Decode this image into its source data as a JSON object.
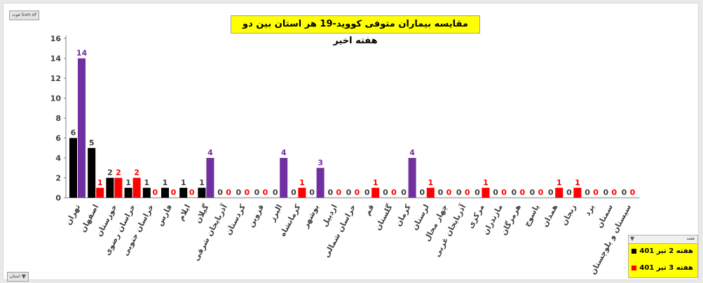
{
  "pivot": {
    "value_button": "Sum of فوت",
    "axis_button": "استان",
    "legend_field": "هفته"
  },
  "chart_data": {
    "type": "bar",
    "title": "مقایسه بیماران متوفی کووید-19 هر استان بین دو هفته اخیر",
    "ylim": [
      0,
      16
    ],
    "yticks": [
      0,
      2,
      4,
      6,
      8,
      10,
      12,
      14,
      16
    ],
    "grid": false,
    "legend_position": "bottom-right",
    "categories": [
      "تهران",
      "اصفهان",
      "خوزستان",
      "خراسان رضوی",
      "خراسان جنوبی",
      "فارس",
      "ایلام",
      "گیلان",
      "آذربایجان شرقی",
      "کردستان",
      "قزوین",
      "البرز",
      "کرمانشاه",
      "بوشهر",
      "اردبیل",
      "خراسان شمالی",
      "قم",
      "گلستان",
      "کرمان",
      "لرستان",
      "چهار محال",
      "آذربایجان غربی",
      "مرکزی",
      "مازندران",
      "هرمزگان",
      "یاسوج",
      "همدان",
      "زنجان",
      "یزد",
      "سمنان",
      "سیستان و بلوچستان"
    ],
    "series": [
      {
        "name": "هفته 2 تیر 401",
        "color": "#000000",
        "values": [
          6,
          5,
          2,
          1,
          1,
          1,
          1,
          1,
          0,
          0,
          0,
          0,
          0,
          0,
          0,
          0,
          0,
          0,
          0,
          0,
          0,
          0,
          0,
          0,
          0,
          0,
          0,
          0,
          0,
          0,
          0
        ]
      },
      {
        "name": "هفته 3 تیر 401",
        "color": "#ff0000",
        "values": [
          14,
          1,
          2,
          2,
          0,
          0,
          0,
          4,
          0,
          0,
          0,
          4,
          1,
          3,
          0,
          0,
          1,
          0,
          4,
          1,
          0,
          0,
          1,
          0,
          0,
          0,
          1,
          1,
          0,
          0,
          0
        ]
      }
    ],
    "highlight_color": "#7030a0"
  }
}
